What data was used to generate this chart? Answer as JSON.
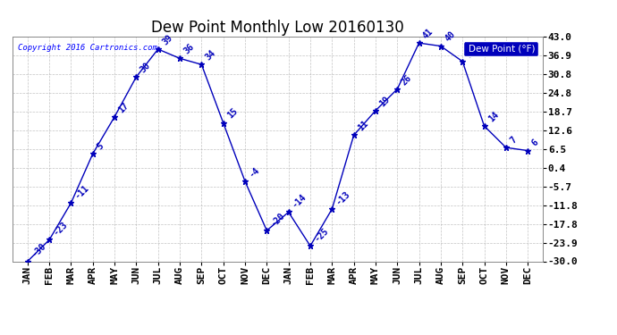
{
  "title": "Dew Point Monthly Low 20160130",
  "copyright": "Copyright 2016 Cartronics.com",
  "legend_label": "Dew Point (°F)",
  "x_labels": [
    "JAN",
    "FEB",
    "MAR",
    "APR",
    "MAY",
    "JUN",
    "JUL",
    "AUG",
    "SEP",
    "OCT",
    "NOV",
    "DEC",
    "JAN",
    "FEB",
    "MAR",
    "APR",
    "MAY",
    "JUN",
    "JUL",
    "AUG",
    "SEP",
    "OCT",
    "NOV",
    "DEC"
  ],
  "y_values": [
    -30,
    -23,
    -11,
    5,
    17,
    30,
    39,
    36,
    34,
    15,
    -4,
    -20,
    -14,
    -25,
    -13,
    11,
    19,
    26,
    41,
    40,
    35,
    14,
    7,
    6
  ],
  "y_tick_vals": [
    43.0,
    36.9,
    30.8,
    24.8,
    18.7,
    12.6,
    6.5,
    0.4,
    -5.7,
    -11.8,
    -17.8,
    -23.9,
    -30.0
  ],
  "ylim": [
    -30.0,
    43.0
  ],
  "line_color": "#0000bb",
  "marker_color": "#0000bb",
  "bg_color": "#ffffff",
  "grid_color": "#aaaaaa",
  "title_fontsize": 12,
  "tick_fontsize": 8,
  "annot_fontsize": 7,
  "legend_bg": "#0000bb",
  "legend_text_color": "#ffffff"
}
